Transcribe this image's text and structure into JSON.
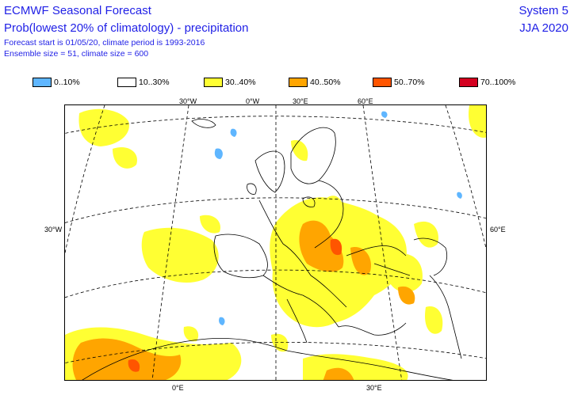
{
  "header": {
    "title": "ECMWF Seasonal Forecast",
    "subtitle": "Prob(lowest 20% of climatology) - precipitation",
    "forecast_line": "Forecast start is 01/05/20, climate period is 1993-2016",
    "ensemble_line": "Ensemble size = 51, climate size = 600",
    "system": "System 5",
    "season": "JJA 2020"
  },
  "legend": [
    {
      "label": "0..10%",
      "color": "#5fb6ff"
    },
    {
      "label": "10..30%",
      "color": "#ffffff"
    },
    {
      "label": "30..40%",
      "color": "#ffff33"
    },
    {
      "label": "40..50%",
      "color": "#ffa500"
    },
    {
      "label": "50..70%",
      "color": "#ff5500"
    },
    {
      "label": "70..100%",
      "color": "#d40020"
    }
  ],
  "axis_labels": {
    "top": [
      "30°W",
      "0°W",
      "30°E",
      "60°E"
    ],
    "left": "30°W",
    "right": "60°E",
    "bottom": [
      "0°E",
      "30°E"
    ]
  }
}
